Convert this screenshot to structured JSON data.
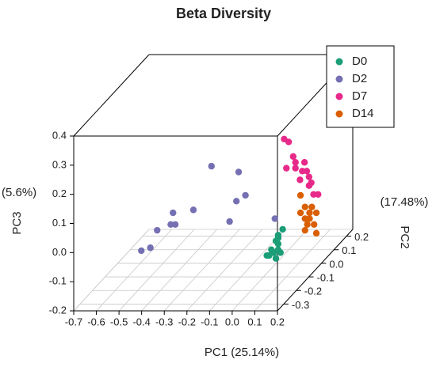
{
  "chart_data": {
    "type": "scatter3d",
    "title": "Beta Diversity",
    "xlabel": "PC1 (25.14%)",
    "ylabel": "PC2",
    "ylabel_note": "(17.48%)",
    "zlabel": "PC3",
    "zlabel_note": "(5.6%)",
    "xlim": [
      -0.7,
      0.2
    ],
    "ylim": [
      -0.35,
      0.25
    ],
    "zlim": [
      -0.2,
      0.4
    ],
    "xticks": [
      -0.7,
      -0.6,
      -0.5,
      -0.4,
      -0.3,
      -0.2,
      -0.1,
      {
        "value": 0,
        "label": "0.0"
      },
      0.1,
      0.2
    ],
    "yticks": [
      -0.3,
      -0.2,
      -0.1,
      {
        "value": 0,
        "label": "0.0"
      },
      0.1,
      0.2
    ],
    "zticks": [
      -0.2,
      -0.1,
      {
        "value": 0,
        "label": "0.0"
      },
      0.1,
      0.2,
      0.3,
      0.4
    ],
    "grid": true,
    "legend": "top-right",
    "series": [
      {
        "name": "D0",
        "color": "#1b9e77",
        "x": [
          0.11,
          0.12,
          0.1,
          0.08,
          0.13,
          0.11,
          0.09,
          0.07,
          0.12,
          0.14,
          0.12,
          0.12
        ],
        "y": [
          -0.2,
          -0.2,
          -0.2,
          -0.2,
          -0.2,
          -0.2,
          -0.2,
          -0.2,
          -0.2,
          -0.2,
          -0.2,
          -0.2
        ],
        "z": [
          -0.03,
          -0.06,
          -0.07,
          -0.08,
          -0.07,
          -0.09,
          -0.06,
          -0.08,
          -0.04,
          0.01,
          -0.01,
          -0.02
        ]
      },
      {
        "name": "D2",
        "color": "#7570b3",
        "x": [
          -0.23,
          -0.11,
          -0.08,
          -0.12,
          -0.31,
          -0.4,
          -0.39,
          -0.41,
          -0.47,
          -0.5,
          -0.54,
          -0.15,
          0.05
        ],
        "y": [
          -0.1,
          -0.1,
          -0.1,
          -0.1,
          -0.1,
          -0.1,
          -0.1,
          -0.1,
          -0.1,
          -0.1,
          -0.1,
          -0.1,
          -0.1
        ],
        "z": [
          0.18,
          0.16,
          0.08,
          0.06,
          0.03,
          0.02,
          -0.02,
          -0.02,
          -0.04,
          -0.1,
          -0.11,
          -0.01,
          0.0
        ]
      },
      {
        "name": "D7",
        "color": "#e7298a",
        "x": [
          -0.02,
          0.0,
          0.02,
          0.03,
          0.03,
          0.07,
          0.06,
          0.08,
          0.09,
          0.09,
          0.1,
          0.11,
          0.13,
          -0.01,
          0.05
        ],
        "y": [
          0.1,
          0.1,
          0.1,
          0.1,
          0.1,
          0.1,
          0.1,
          0.1,
          0.1,
          0.1,
          0.1,
          0.1,
          0.1,
          0.1,
          0.1
        ],
        "z": [
          0.18,
          0.17,
          0.12,
          0.1,
          0.08,
          0.1,
          0.07,
          0.07,
          0.05,
          0.02,
          0.03,
          -0.01,
          -0.01,
          0.08,
          0.04
        ]
      },
      {
        "name": "D14",
        "color": "#d95f02",
        "x": [
          0.08,
          0.1,
          0.12,
          0.13,
          0.15,
          0.12,
          0.11,
          0.1,
          0.15,
          0.1,
          0.14,
          0.08
        ],
        "y": [
          0.05,
          0.05,
          0.05,
          0.05,
          0.05,
          0.05,
          0.05,
          0.05,
          0.05,
          0.05,
          0.05,
          0.05
        ],
        "z": [
          0.01,
          -0.03,
          -0.05,
          -0.03,
          -0.05,
          -0.07,
          -0.09,
          -0.07,
          -0.12,
          -0.11,
          -0.09,
          -0.05
        ]
      }
    ]
  }
}
